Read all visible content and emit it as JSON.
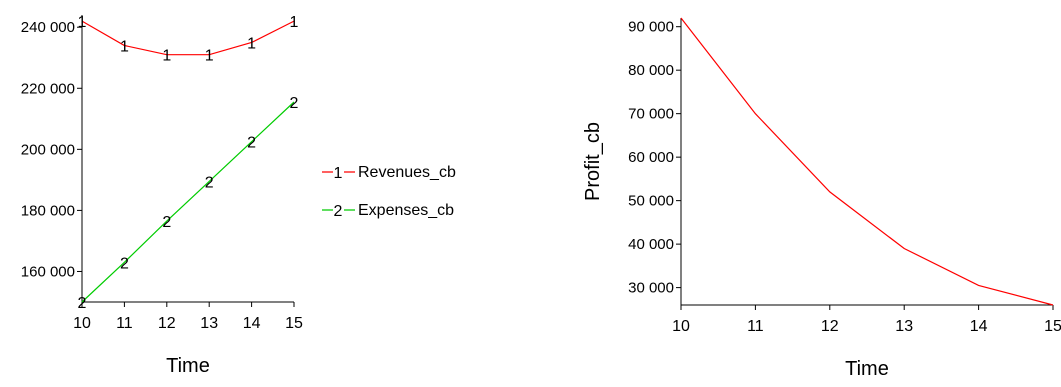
{
  "chart_data": [
    {
      "type": "line",
      "title": "",
      "xlabel": "Time",
      "ylabel": "",
      "x": [
        10,
        11,
        12,
        13,
        14,
        15
      ],
      "xlim": [
        10,
        15
      ],
      "ylim": [
        150000,
        244000
      ],
      "xticks": [
        "10",
        "11",
        "12",
        "13",
        "14",
        "15"
      ],
      "yticks": [
        160000,
        180000,
        200000,
        220000,
        240000
      ],
      "ytick_labels": [
        "160 000",
        "180 000",
        "200 000",
        "220 000",
        "240 000"
      ],
      "grid": false,
      "legend_position": "right",
      "series": [
        {
          "name": "Revenues_cb",
          "marker": "1",
          "color": "#ff0000",
          "values": [
            242000,
            234000,
            231000,
            231000,
            235000,
            242000
          ]
        },
        {
          "name": "Expenses_cb",
          "marker": "2",
          "color": "#00cc00",
          "values": [
            150000,
            163000,
            176500,
            189500,
            202500,
            215500
          ]
        }
      ]
    },
    {
      "type": "line",
      "title": "",
      "xlabel": "Time",
      "ylabel": "Profit_cb",
      "x": [
        10,
        11,
        12,
        13,
        14,
        15
      ],
      "xlim": [
        10,
        15
      ],
      "ylim": [
        26000,
        92000
      ],
      "xticks": [
        "10",
        "11",
        "12",
        "13",
        "14",
        "15"
      ],
      "yticks": [
        30000,
        40000,
        50000,
        60000,
        70000,
        80000,
        90000
      ],
      "ytick_labels": [
        "30 000",
        "40 000",
        "50 000",
        "60 000",
        "70 000",
        "80 000",
        "90 000"
      ],
      "grid": false,
      "series": [
        {
          "name": "",
          "color": "#ff0000",
          "values": [
            92000,
            70000,
            52000,
            39000,
            30500,
            26000
          ]
        }
      ]
    }
  ]
}
